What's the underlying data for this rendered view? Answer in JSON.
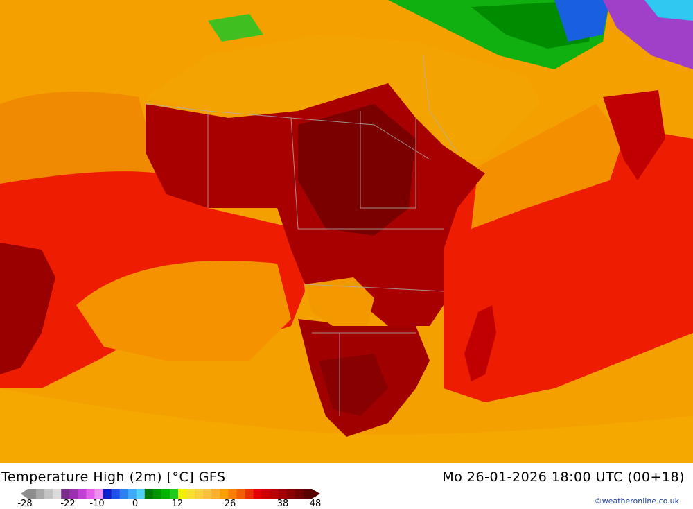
{
  "map": {
    "title": "Temperature High (2m) [°C] GFS",
    "datetime": "Mo 26-01-2026 18:00 UTC (00+18)",
    "credit": "©weatheronline.co.uk"
  },
  "legend": {
    "ticks": [
      "-28",
      "-22",
      "-10",
      "0",
      "12",
      "26",
      "38",
      "48"
    ],
    "colors": [
      "#8c8c8c",
      "#a8a8a8",
      "#c4c4c4",
      "#dcdcdc",
      "#7b2d8c",
      "#9b30b0",
      "#c040d0",
      "#e060e8",
      "#f090f0",
      "#1020c8",
      "#2050e8",
      "#3080f0",
      "#40a8f8",
      "#50d0f8",
      "#007800",
      "#009600",
      "#00b400",
      "#20c820",
      "#f0f000",
      "#f8e030",
      "#f8d040",
      "#f8c040",
      "#f8b030",
      "#f8a000",
      "#f88000",
      "#f06000",
      "#e83000",
      "#e80000",
      "#d00000",
      "#b80000",
      "#a00000",
      "#880000",
      "#700000",
      "#580000"
    ]
  },
  "colors": {
    "ocean_warm": "#f4a000",
    "ocean_hot": "#ee1c00",
    "land_hot": "#a80000",
    "land_hottest": "#7a0000",
    "cool_green": "#10b010",
    "cold_blue": "#1860e0"
  }
}
